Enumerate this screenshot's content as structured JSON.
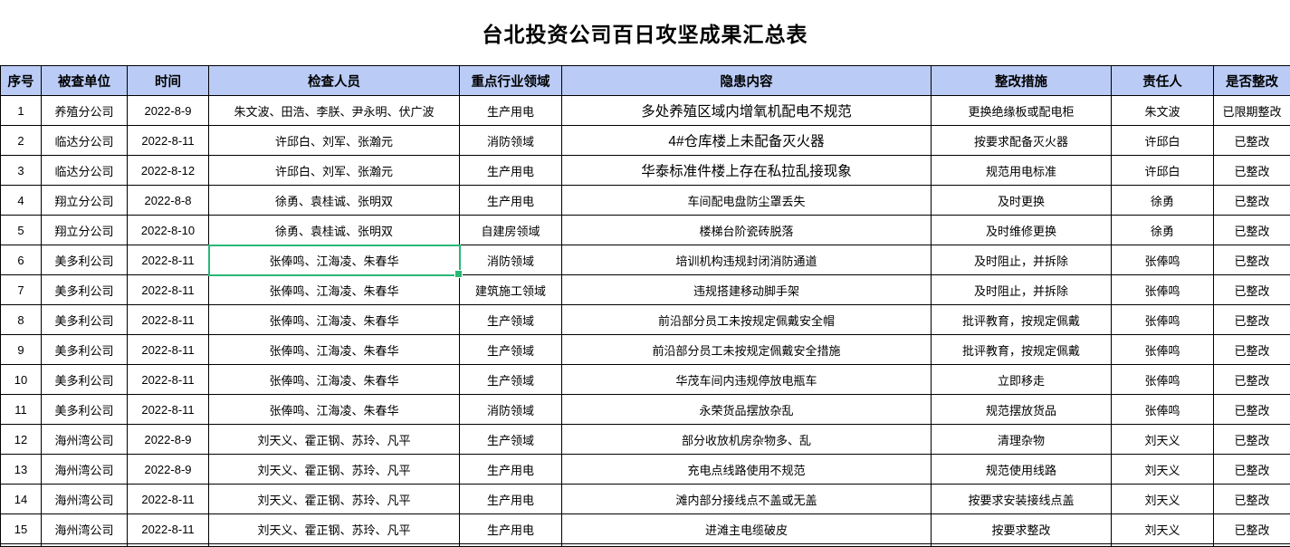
{
  "title": "台北投资公司百日攻坚成果汇总表",
  "table": {
    "headers": [
      "序号",
      "被查单位",
      "时间",
      "检查人员",
      "重点行业领域",
      "隐患内容",
      "整改措施",
      "责任人",
      "是否整改"
    ],
    "column_keys": [
      "no",
      "unit",
      "date",
      "inspectors",
      "field",
      "danger",
      "measure",
      "owner",
      "status"
    ],
    "rows": [
      [
        "1",
        "养殖分公司",
        "2022-8-9",
        "朱文波、田浩、李朕、尹永明、伏广波",
        "生产用电",
        "多处养殖区域内增氧机配电不规范",
        "更换绝缘板或配电柜",
        "朱文波",
        "已限期整改"
      ],
      [
        "2",
        "临达分公司",
        "2022-8-11",
        "许邱白、刘军、张瀚元",
        "消防领域",
        "4#仓库楼上未配备灭火器",
        "按要求配备灭火器",
        "许邱白",
        "已整改"
      ],
      [
        "3",
        "临达分公司",
        "2022-8-12",
        "许邱白、刘军、张瀚元",
        "生产用电",
        "华泰标准件楼上存在私拉乱接现象",
        "规范用电标准",
        "许邱白",
        "已整改"
      ],
      [
        "4",
        "翔立分公司",
        "2022-8-8",
        "徐勇、袁桂诚、张明双",
        "生产用电",
        "车间配电盘防尘罩丢失",
        "及时更换",
        "徐勇",
        "已整改"
      ],
      [
        "5",
        "翔立分公司",
        "2022-8-10",
        "徐勇、袁桂诚、张明双",
        "自建房领域",
        "楼梯台阶瓷砖脱落",
        "及时维修更换",
        "徐勇",
        "已整改"
      ],
      [
        "6",
        "美多利公司",
        "2022-8-11",
        "张俸鸣、江海凌、朱春华",
        "消防领域",
        "培训机构违规封闭消防通道",
        "及时阻止，并拆除",
        "张俸鸣",
        "已整改"
      ],
      [
        "7",
        "美多利公司",
        "2022-8-11",
        "张俸鸣、江海凌、朱春华",
        "建筑施工领域",
        "违规搭建移动脚手架",
        "及时阻止，并拆除",
        "张俸鸣",
        "已整改"
      ],
      [
        "8",
        "美多利公司",
        "2022-8-11",
        "张俸鸣、江海凌、朱春华",
        "生产领域",
        "前沿部分员工未按规定佩戴安全帽",
        "批评教育，按规定佩戴",
        "张俸鸣",
        "已整改"
      ],
      [
        "9",
        "美多利公司",
        "2022-8-11",
        "张俸鸣、江海凌、朱春华",
        "生产领域",
        "前沿部分员工未按规定佩戴安全措施",
        "批评教育，按规定佩戴",
        "张俸鸣",
        "已整改"
      ],
      [
        "10",
        "美多利公司",
        "2022-8-11",
        "张俸鸣、江海凌、朱春华",
        "生产领域",
        "华茂车间内违规停放电瓶车",
        "立即移走",
        "张俸鸣",
        "已整改"
      ],
      [
        "11",
        "美多利公司",
        "2022-8-11",
        "张俸鸣、江海凌、朱春华",
        "消防领域",
        "永荣货品摆放杂乱",
        "规范摆放货品",
        "张俸鸣",
        "已整改"
      ],
      [
        "12",
        "海州湾公司",
        "2022-8-9",
        "刘天义、霍正钢、苏玲、凡平",
        "生产领域",
        "部分收放机房杂物多、乱",
        "清理杂物",
        "刘天义",
        "已整改"
      ],
      [
        "13",
        "海州湾公司",
        "2022-8-9",
        "刘天义、霍正钢、苏玲、凡平",
        "生产用电",
        "充电点线路使用不规范",
        "规范使用线路",
        "刘天义",
        "已整改"
      ],
      [
        "14",
        "海州湾公司",
        "2022-8-11",
        "刘天义、霍正钢、苏玲、凡平",
        "生产用电",
        "滩内部分接线点不盖或无盖",
        "按要求安装接线点盖",
        "刘天义",
        "已整改"
      ],
      [
        "15",
        "海州湾公司",
        "2022-8-11",
        "刘天义、霍正钢、苏玲、凡平",
        "生产用电",
        "进滩主电缆破皮",
        "按要求整改",
        "刘天义",
        "已整改"
      ]
    ],
    "selection": {
      "row_index": 5,
      "col_index": 3
    }
  },
  "colors": {
    "header_bg": "#BACBF6",
    "grid_line": "#000000",
    "selection_green": "#28B878",
    "text": "#000000"
  }
}
